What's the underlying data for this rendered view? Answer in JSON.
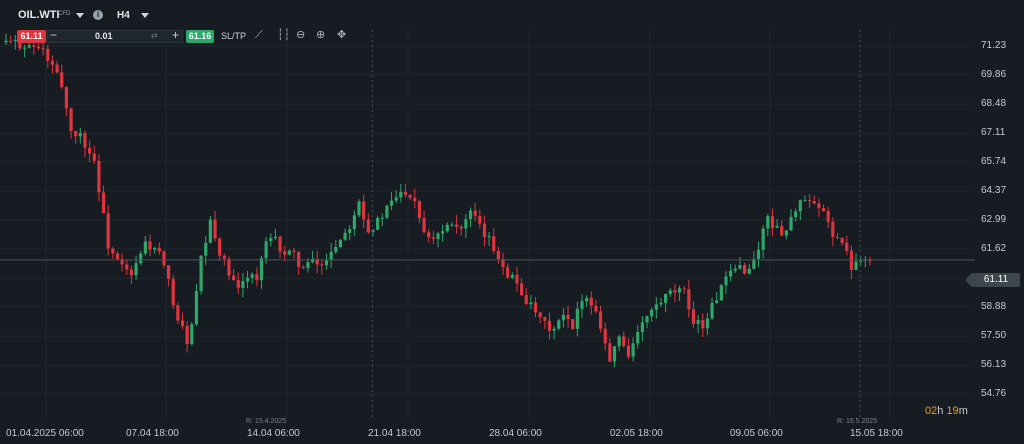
{
  "toolbar": {
    "symbol": "OIL.WTI",
    "instrument_type": "CFD",
    "timeframe": "H4",
    "sell_price": "61.11",
    "buy_price": "61.16",
    "quantity": "0.01",
    "minus": "−",
    "plus": "+",
    "sltp_label": "SL/TP"
  },
  "price_axis": {
    "current_price": "61.11",
    "current_line_color": "#3d454d"
  },
  "markers": [
    {
      "label": "R: 15.4.2025"
    },
    {
      "label": "R: 16.5.2025"
    }
  ],
  "countdown": {
    "hours": "02",
    "h": "h",
    "minutes": "19",
    "m": "m"
  },
  "colors": {
    "up": "#2ea86a",
    "down": "#e0353f",
    "background": "#161c21",
    "accent_timer": "#e3a321"
  },
  "chart_data": {
    "type": "candlestick",
    "title": "",
    "ylim": [
      54.76,
      72.2
    ],
    "y_ticks": [
      "71.23",
      "69.86",
      "68.48",
      "67.11",
      "65.74",
      "64.37",
      "62.99",
      "61.62",
      "60.25",
      "58.88",
      "57.50",
      "56.13",
      "54.76"
    ],
    "x_ticks": [
      "01.04.2025 06:00",
      "07.04 18:00",
      "14.04 06:00",
      "21.04 18:00",
      "28.04 06:00",
      "02.05 18:00",
      "09.05 06:00",
      "15.05 18:00"
    ],
    "close_path": [
      [
        0,
        71.4
      ],
      [
        4,
        71.3
      ],
      [
        8,
        71.0
      ],
      [
        10,
        70.2
      ],
      [
        12,
        69.4
      ],
      [
        14,
        67.2
      ],
      [
        16,
        67.0
      ],
      [
        19,
        65.8
      ],
      [
        22,
        61.8
      ],
      [
        24,
        61.0
      ],
      [
        27,
        60.3
      ],
      [
        30,
        61.9
      ],
      [
        33,
        61.4
      ],
      [
        35,
        60.0
      ],
      [
        37,
        58.3
      ],
      [
        39,
        57.3
      ],
      [
        40,
        57.9
      ],
      [
        42,
        61.1
      ],
      [
        44,
        62.8
      ],
      [
        46,
        61.5
      ],
      [
        48,
        60.4
      ],
      [
        50,
        59.6
      ],
      [
        52,
        60.5
      ],
      [
        54,
        60.2
      ],
      [
        56,
        61.9
      ],
      [
        58,
        62.0
      ],
      [
        60,
        61.4
      ],
      [
        62,
        61.3
      ],
      [
        64,
        60.7
      ],
      [
        66,
        61.0
      ],
      [
        68,
        60.8
      ],
      [
        70,
        61.6
      ],
      [
        72,
        62.1
      ],
      [
        74,
        62.8
      ],
      [
        76,
        64.0
      ],
      [
        78,
        62.5
      ],
      [
        80,
        62.9
      ],
      [
        82,
        63.5
      ],
      [
        84,
        64.1
      ],
      [
        86,
        64.4
      ],
      [
        88,
        64.0
      ],
      [
        90,
        62.5
      ],
      [
        92,
        62.2
      ],
      [
        94,
        62.6
      ],
      [
        96,
        63.0
      ],
      [
        98,
        62.6
      ],
      [
        100,
        63.3
      ],
      [
        102,
        62.6
      ],
      [
        104,
        62.0
      ],
      [
        106,
        61.3
      ],
      [
        108,
        60.5
      ],
      [
        110,
        60.0
      ],
      [
        112,
        59.2
      ],
      [
        114,
        58.5
      ],
      [
        116,
        58.0
      ],
      [
        118,
        57.8
      ],
      [
        120,
        58.4
      ],
      [
        122,
        57.8
      ],
      [
        124,
        59.4
      ],
      [
        126,
        59.1
      ],
      [
        128,
        58.1
      ],
      [
        130,
        56.3
      ],
      [
        132,
        57.5
      ],
      [
        134,
        56.7
      ],
      [
        136,
        57.6
      ],
      [
        138,
        58.4
      ],
      [
        140,
        58.9
      ],
      [
        142,
        59.3
      ],
      [
        144,
        59.6
      ],
      [
        146,
        59.5
      ],
      [
        148,
        58.3
      ],
      [
        150,
        58.0
      ],
      [
        152,
        58.9
      ],
      [
        154,
        59.8
      ],
      [
        156,
        60.4
      ],
      [
        158,
        60.8
      ],
      [
        160,
        60.6
      ],
      [
        162,
        61.7
      ],
      [
        164,
        63.2
      ],
      [
        166,
        62.5
      ],
      [
        168,
        62.5
      ],
      [
        170,
        63.6
      ],
      [
        172,
        63.9
      ],
      [
        174,
        63.6
      ],
      [
        176,
        63.3
      ],
      [
        178,
        62.4
      ],
      [
        180,
        61.9
      ],
      [
        182,
        60.8
      ],
      [
        184,
        61.3
      ],
      [
        186,
        61.1
      ]
    ],
    "marker_index": [
      78,
      183
    ]
  }
}
